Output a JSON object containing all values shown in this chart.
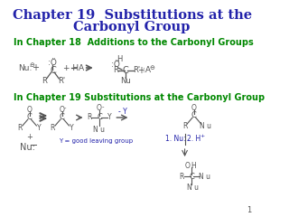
{
  "bg_color": "#ffffff",
  "title_line1": "Chapter 19  Substitutions at the",
  "title_line2": "Carbonyl Group",
  "title_color": "#2222aa",
  "title_fontsize": 10.5,
  "subtitle1": "In Chapter 18  Additions to the Carbonyl Groups",
  "subtitle2": "In Chapter 19 Substitutions at the Carbonyl Group",
  "subtitle_color": "#008800",
  "subtitle_fontsize": 7.0,
  "chem_color": "#555555",
  "blue_color": "#2222aa",
  "page_num": "1"
}
